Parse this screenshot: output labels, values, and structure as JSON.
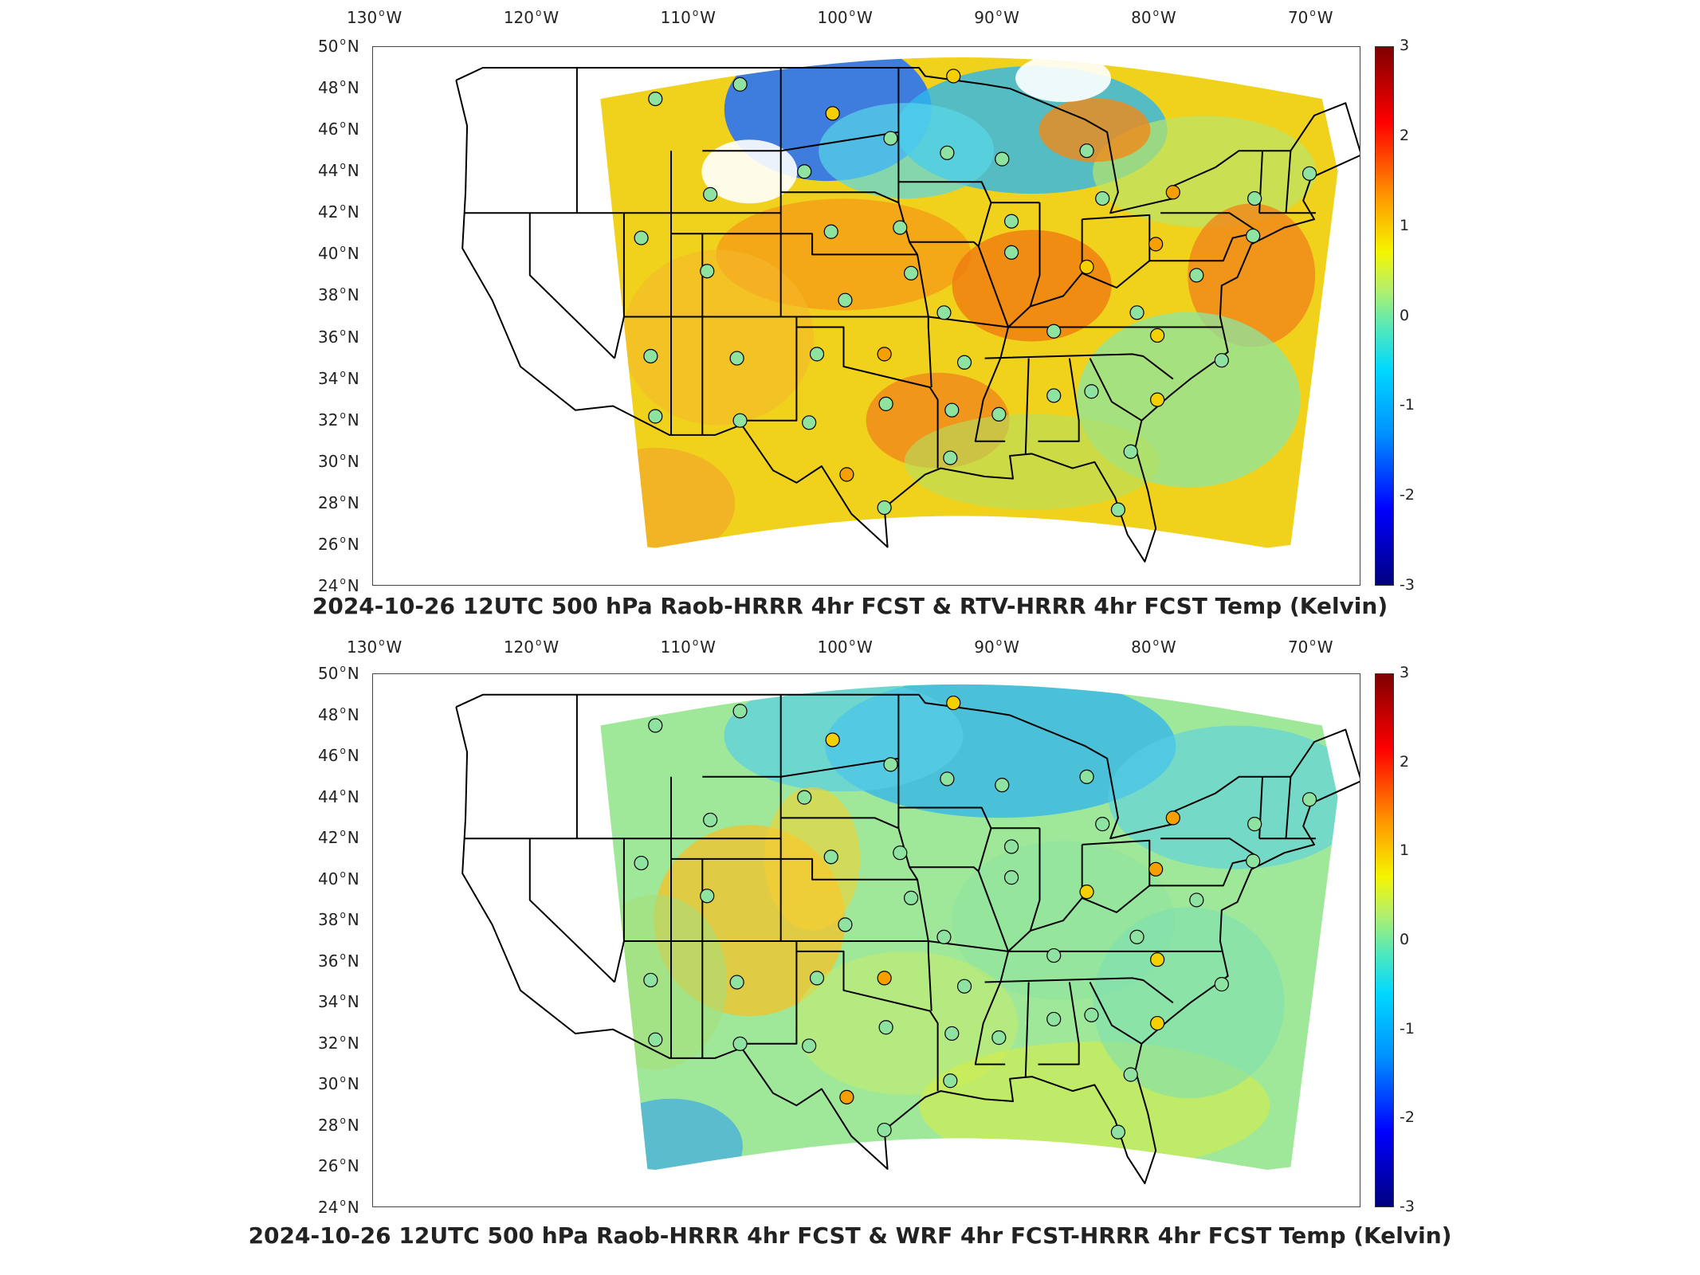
{
  "colors": {
    "land_bg": "#ffffff",
    "border": "#000000",
    "field_mid": "#9fe89a",
    "field_warm": "#f0d21c",
    "field_cool": "#39d6e6",
    "station_warm": "#f5d000",
    "station_hot": "#f5a000",
    "station_neutral": "#8fe3a0"
  },
  "axes": {
    "lon_labels": [
      "130",
      "120",
      "110",
      "100",
      "90",
      "80",
      "70"
    ],
    "lon_unit": "W",
    "lat_labels": [
      "50",
      "48",
      "46",
      "44",
      "42",
      "40",
      "38",
      "36",
      "34",
      "32",
      "30",
      "28",
      "26",
      "24"
    ],
    "lat_unit": "N"
  },
  "colorbar": {
    "ticks": [
      "3",
      "2",
      "1",
      "0",
      "-1",
      "-2",
      "-3"
    ],
    "range": [
      -3,
      3
    ],
    "colormap": "jet"
  },
  "panels": [
    {
      "id": "top",
      "title": "2024-10-26 12UTC 500 hPa Raob-HRRR 4hr FCST & RTV-HRRR 4hr FCST Temp (Kelvin)"
    },
    {
      "id": "bottom",
      "title": "2024-10-26 12UTC 500 hPa Raob-HRRR 4hr FCST & WRF 4hr FCST-HRRR 4hr FCST Temp (Kelvin)"
    }
  ],
  "stations": [
    {
      "lon": -112.0,
      "lat": 47.5
    },
    {
      "lon": -106.6,
      "lat": 48.2
    },
    {
      "lon": -100.7,
      "lat": 46.8
    },
    {
      "lon": -97.0,
      "lat": 45.6
    },
    {
      "lon": -93.4,
      "lat": 44.9
    },
    {
      "lon": -89.9,
      "lat": 44.6
    },
    {
      "lon": -84.5,
      "lat": 45.0
    },
    {
      "lon": -83.5,
      "lat": 42.7
    },
    {
      "lon": -79.0,
      "lat": 43.0
    },
    {
      "lon": -73.8,
      "lat": 42.7
    },
    {
      "lon": -70.3,
      "lat": 43.9
    },
    {
      "lon": -93.0,
      "lat": 48.6
    },
    {
      "lon": -102.5,
      "lat": 44.0
    },
    {
      "lon": -108.5,
      "lat": 42.9
    },
    {
      "lon": -112.9,
      "lat": 40.8
    },
    {
      "lon": -108.7,
      "lat": 39.2
    },
    {
      "lon": -100.8,
      "lat": 41.1
    },
    {
      "lon": -96.4,
      "lat": 41.3
    },
    {
      "lon": -89.3,
      "lat": 41.6
    },
    {
      "lon": -89.3,
      "lat": 40.1
    },
    {
      "lon": -84.5,
      "lat": 39.4
    },
    {
      "lon": -80.1,
      "lat": 40.5
    },
    {
      "lon": -77.5,
      "lat": 39.0
    },
    {
      "lon": -73.9,
      "lat": 40.9
    },
    {
      "lon": -95.7,
      "lat": 39.1
    },
    {
      "lon": -99.9,
      "lat": 37.8
    },
    {
      "lon": -93.6,
      "lat": 37.2
    },
    {
      "lon": -86.6,
      "lat": 36.3
    },
    {
      "lon": -81.3,
      "lat": 37.2
    },
    {
      "lon": -80.0,
      "lat": 36.1
    },
    {
      "lon": -75.9,
      "lat": 34.9
    },
    {
      "lon": -112.3,
      "lat": 35.1
    },
    {
      "lon": -106.8,
      "lat": 35.0
    },
    {
      "lon": -101.7,
      "lat": 35.2
    },
    {
      "lon": -97.4,
      "lat": 35.2
    },
    {
      "lon": -92.3,
      "lat": 34.8
    },
    {
      "lon": -86.6,
      "lat": 33.2
    },
    {
      "lon": -84.2,
      "lat": 33.4
    },
    {
      "lon": -80.0,
      "lat": 33.0
    },
    {
      "lon": -112.0,
      "lat": 32.2
    },
    {
      "lon": -106.6,
      "lat": 32.0
    },
    {
      "lon": -102.2,
      "lat": 31.9
    },
    {
      "lon": -97.3,
      "lat": 32.8
    },
    {
      "lon": -93.1,
      "lat": 32.5
    },
    {
      "lon": -90.1,
      "lat": 32.3
    },
    {
      "lon": -93.2,
      "lat": 30.2
    },
    {
      "lon": -81.7,
      "lat": 30.5
    },
    {
      "lon": -99.8,
      "lat": 29.4
    },
    {
      "lon": -97.4,
      "lat": 27.8
    },
    {
      "lon": -82.5,
      "lat": 27.7
    }
  ]
}
